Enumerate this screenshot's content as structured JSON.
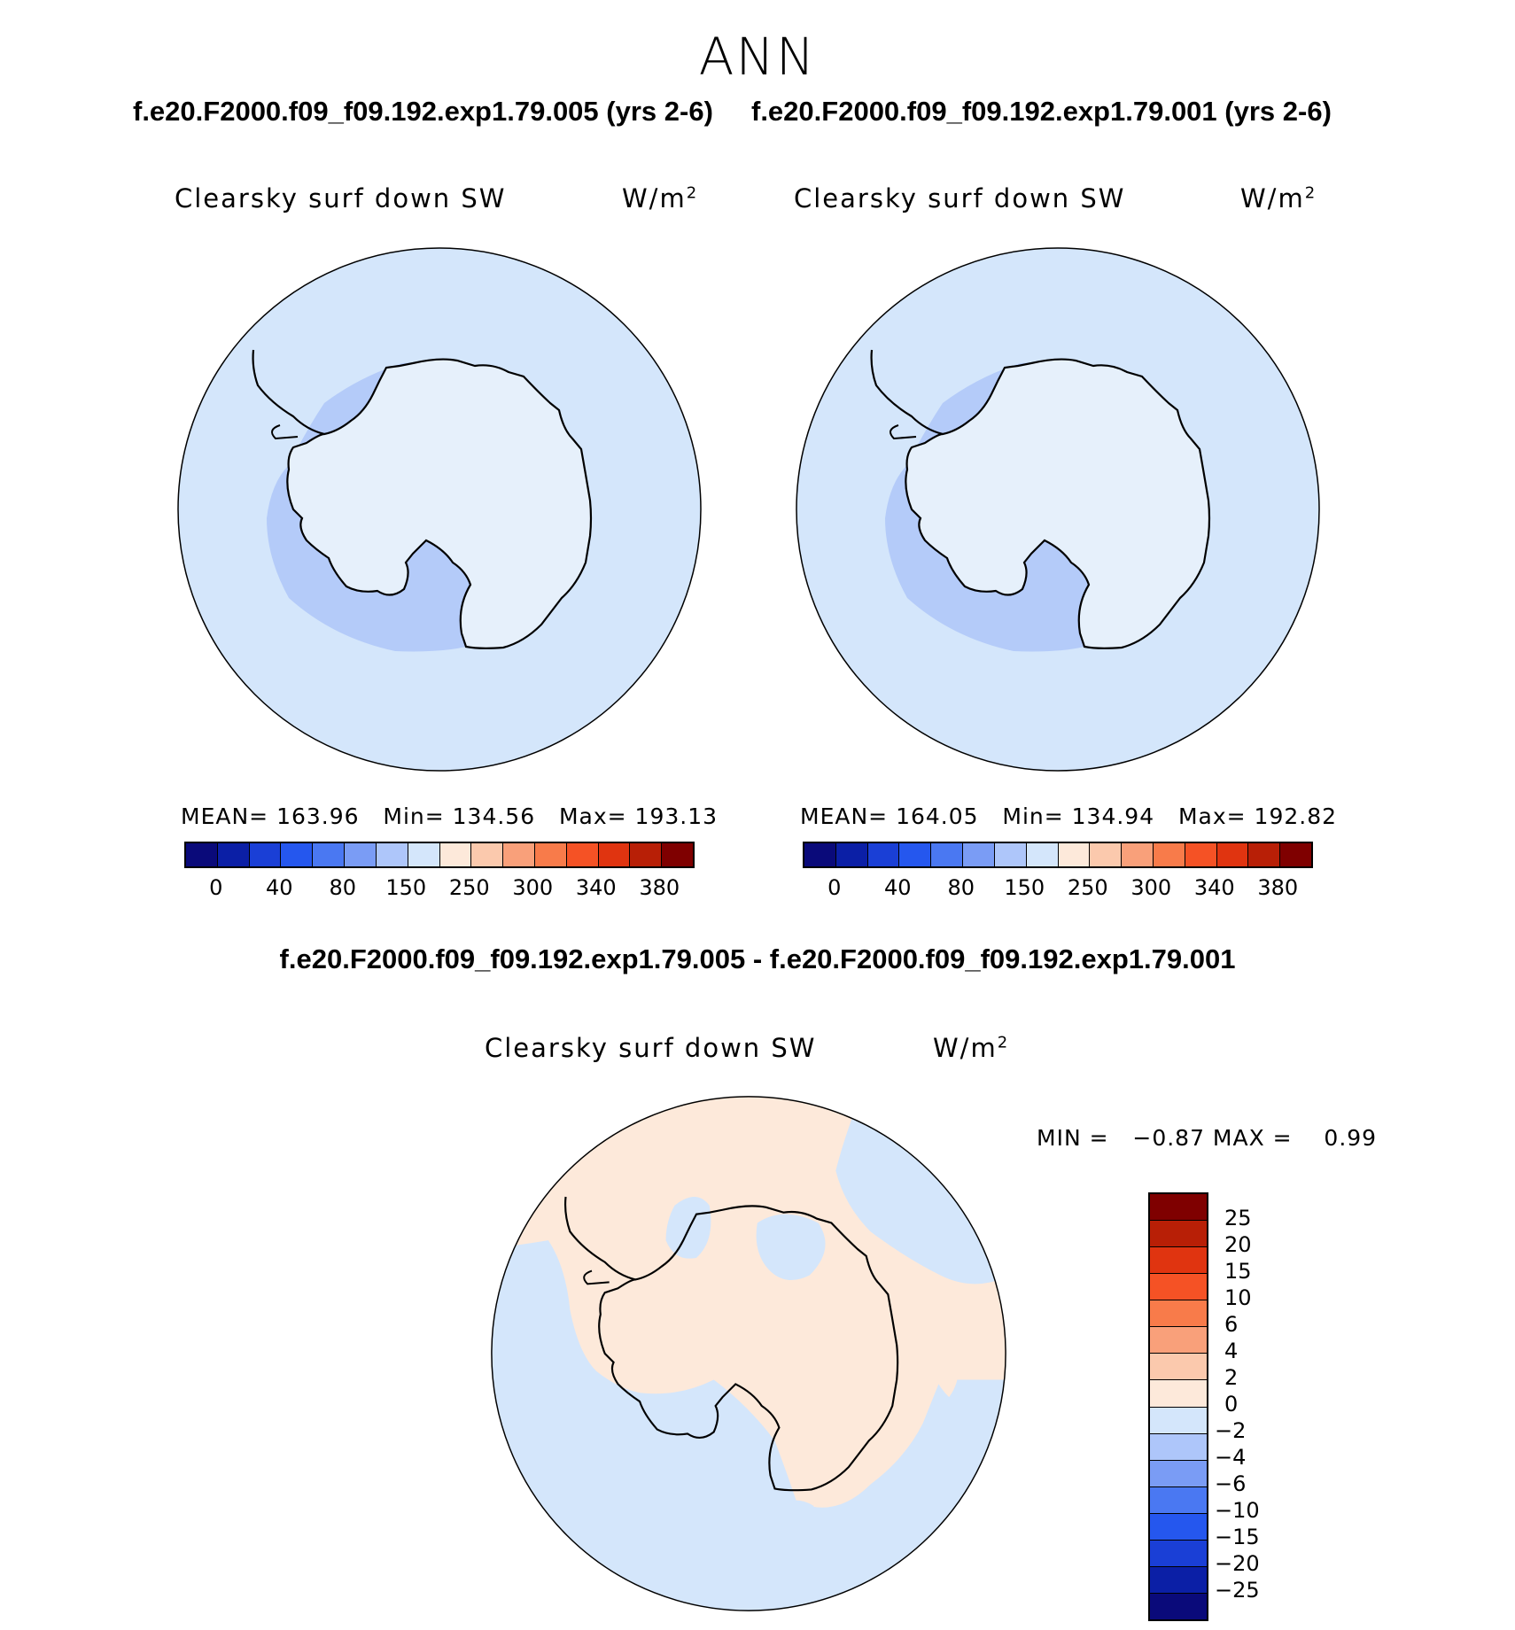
{
  "season": "ANN",
  "case1_title": "f.e20.F2000.f09_f09.192.exp1.79.005 (yrs 2-6)",
  "case2_title": "f.e20.F2000.f09_f09.192.exp1.79.001 (yrs 2-6)",
  "diff_title": "f.e20.F2000.f09_f09.192.exp1.79.005 - f.e20.F2000.f09_f09.192.exp1.79.001",
  "variable": "Clearsky surf down SW",
  "units_base": "W/m",
  "units_exp": "2",
  "panel1": {
    "mean": "MEAN= 163.96",
    "min": "Min= 134.56",
    "max": "Max= 193.13"
  },
  "panel2": {
    "mean": "MEAN= 164.05",
    "min": "Min= 134.94",
    "max": "Max= 192.82"
  },
  "diff_minmax": "MIN =   −0.87 MAX =    0.99",
  "abs_colorbar": {
    "colors": [
      "#0a0a7a",
      "#0b1fa6",
      "#1a3fd6",
      "#2557ee",
      "#4a78f2",
      "#7a9cf5",
      "#aec6fa",
      "#d4e6fb",
      "#fde9da",
      "#fbc9ad",
      "#f9a07a",
      "#f87b4a",
      "#f55225",
      "#e03410",
      "#b81f06",
      "#7f0000"
    ],
    "ticks": [
      "0",
      "40",
      "80",
      "150",
      "250",
      "300",
      "340",
      "380"
    ]
  },
  "diff_colorbar": {
    "colors": [
      "#7f0000",
      "#b81f06",
      "#e03410",
      "#f55225",
      "#f87b4a",
      "#f9a07a",
      "#fbc9ad",
      "#fde9da",
      "#d4e6fb",
      "#aec6fa",
      "#7a9cf5",
      "#4a78f2",
      "#2557ee",
      "#1a3fd6",
      "#0b1fa6",
      "#0a0a7a"
    ],
    "ticks": [
      "25",
      "20",
      "15",
      "10",
      "6",
      "4",
      "2",
      "0",
      "−2",
      "−4",
      "−6",
      "−10",
      "−15",
      "−20",
      "−25"
    ]
  },
  "map_colors": {
    "ocean": "#d4e6fb",
    "interior": "#e6f0fb",
    "lowband": "#b4cbf9",
    "positive": "#fde9da",
    "negative": "#d4e6fb"
  }
}
